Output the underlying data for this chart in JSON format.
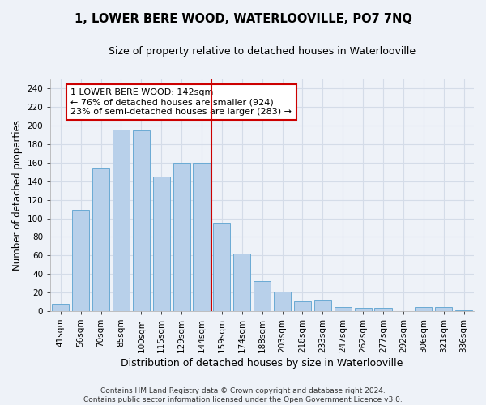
{
  "title": "1, LOWER BERE WOOD, WATERLOOVILLE, PO7 7NQ",
  "subtitle": "Size of property relative to detached houses in Waterlooville",
  "xlabel": "Distribution of detached houses by size in Waterlooville",
  "ylabel": "Number of detached properties",
  "categories": [
    "41sqm",
    "56sqm",
    "70sqm",
    "85sqm",
    "100sqm",
    "115sqm",
    "129sqm",
    "144sqm",
    "159sqm",
    "174sqm",
    "188sqm",
    "203sqm",
    "218sqm",
    "233sqm",
    "247sqm",
    "262sqm",
    "277sqm",
    "292sqm",
    "306sqm",
    "321sqm",
    "336sqm"
  ],
  "values": [
    8,
    109,
    154,
    196,
    195,
    145,
    160,
    160,
    95,
    62,
    32,
    21,
    10,
    12,
    4,
    3,
    3,
    0,
    4,
    4,
    1
  ],
  "bar_color": "#b8d0ea",
  "bar_edge_color": "#6aaad4",
  "highlight_index": 7,
  "annotation_text": "1 LOWER BERE WOOD: 142sqm\n← 76% of detached houses are smaller (924)\n23% of semi-detached houses are larger (283) →",
  "annotation_box_color": "#ffffff",
  "annotation_box_edge": "#cc0000",
  "vline_color": "#cc0000",
  "ylim": [
    0,
    250
  ],
  "yticks": [
    0,
    20,
    40,
    60,
    80,
    100,
    120,
    140,
    160,
    180,
    200,
    220,
    240
  ],
  "grid_color": "#d4dce8",
  "background_color": "#eef2f8",
  "footer": "Contains HM Land Registry data © Crown copyright and database right 2024.\nContains public sector information licensed under the Open Government Licence v3.0.",
  "title_fontsize": 10.5,
  "subtitle_fontsize": 9,
  "xlabel_fontsize": 9,
  "ylabel_fontsize": 8.5,
  "tick_fontsize": 7.5,
  "annotation_fontsize": 8,
  "footer_fontsize": 6.5
}
